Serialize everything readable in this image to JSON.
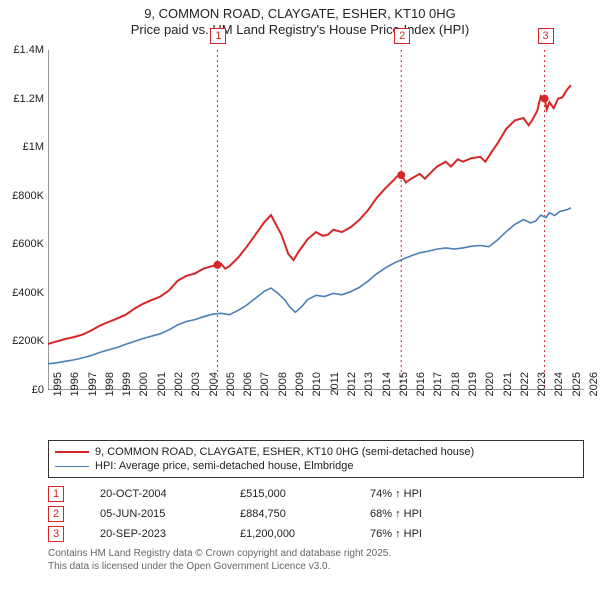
{
  "chart": {
    "type": "line",
    "title_line1": "9, COMMON ROAD, CLAYGATE, ESHER, KT10 0HG",
    "title_line2": "Price paid vs. HM Land Registry's House Price Index (HPI)",
    "title_fontsize": 13,
    "background_color": "#ffffff",
    "plot_border_color": "#333333",
    "grid_color": "#e5e5e5",
    "x_start_year": 1995,
    "x_end_year": 2026,
    "x_ticks": [
      1995,
      1996,
      1997,
      1998,
      1999,
      2000,
      2001,
      2002,
      2003,
      2004,
      2005,
      2006,
      2007,
      2008,
      2009,
      2010,
      2011,
      2012,
      2013,
      2014,
      2015,
      2016,
      2017,
      2018,
      2019,
      2020,
      2021,
      2022,
      2023,
      2024,
      2025,
      2026
    ],
    "ylim": [
      0,
      1400000
    ],
    "y_ticks": [
      0,
      200000,
      400000,
      600000,
      800000,
      1000000,
      1200000,
      1400000
    ],
    "y_tick_labels": [
      "£0",
      "£200K",
      "£400K",
      "£600K",
      "£800K",
      "£1M",
      "£1.2M",
      "£1.4M"
    ],
    "series": [
      {
        "key": "subject",
        "label": "9, COMMON ROAD, CLAYGATE, ESHER, KT10 0HG (semi-detached house)",
        "color": "#d62728",
        "line_width": 2,
        "data": [
          [
            1995.0,
            190000
          ],
          [
            1995.5,
            200000
          ],
          [
            1996.0,
            210000
          ],
          [
            1996.5,
            218000
          ],
          [
            1997.0,
            228000
          ],
          [
            1997.5,
            245000
          ],
          [
            1998.0,
            265000
          ],
          [
            1998.5,
            280000
          ],
          [
            1999.0,
            295000
          ],
          [
            1999.5,
            310000
          ],
          [
            2000.0,
            335000
          ],
          [
            2000.5,
            355000
          ],
          [
            2001.0,
            370000
          ],
          [
            2001.5,
            385000
          ],
          [
            2002.0,
            410000
          ],
          [
            2002.5,
            450000
          ],
          [
            2003.0,
            470000
          ],
          [
            2003.5,
            480000
          ],
          [
            2004.0,
            500000
          ],
          [
            2004.5,
            510000
          ],
          [
            2004.8,
            515000
          ],
          [
            2005.0,
            520000
          ],
          [
            2005.25,
            500000
          ],
          [
            2005.5,
            510000
          ],
          [
            2006.0,
            545000
          ],
          [
            2006.5,
            590000
          ],
          [
            2007.0,
            640000
          ],
          [
            2007.5,
            690000
          ],
          [
            2007.9,
            720000
          ],
          [
            2008.2,
            680000
          ],
          [
            2008.5,
            640000
          ],
          [
            2008.9,
            560000
          ],
          [
            2009.2,
            535000
          ],
          [
            2009.5,
            570000
          ],
          [
            2010.0,
            620000
          ],
          [
            2010.5,
            650000
          ],
          [
            2010.9,
            635000
          ],
          [
            2011.2,
            640000
          ],
          [
            2011.5,
            660000
          ],
          [
            2012.0,
            650000
          ],
          [
            2012.5,
            670000
          ],
          [
            2013.0,
            700000
          ],
          [
            2013.5,
            740000
          ],
          [
            2014.0,
            790000
          ],
          [
            2014.5,
            830000
          ],
          [
            2015.0,
            865000
          ],
          [
            2015.2,
            880000
          ],
          [
            2015.43,
            884750
          ],
          [
            2015.7,
            855000
          ],
          [
            2016.0,
            870000
          ],
          [
            2016.5,
            890000
          ],
          [
            2016.8,
            870000
          ],
          [
            2017.0,
            885000
          ],
          [
            2017.5,
            920000
          ],
          [
            2018.0,
            940000
          ],
          [
            2018.3,
            920000
          ],
          [
            2018.7,
            950000
          ],
          [
            2019.0,
            940000
          ],
          [
            2019.5,
            955000
          ],
          [
            2020.0,
            960000
          ],
          [
            2020.3,
            940000
          ],
          [
            2020.7,
            985000
          ],
          [
            2021.0,
            1015000
          ],
          [
            2021.5,
            1075000
          ],
          [
            2022.0,
            1110000
          ],
          [
            2022.5,
            1120000
          ],
          [
            2022.8,
            1090000
          ],
          [
            2023.0,
            1110000
          ],
          [
            2023.3,
            1150000
          ],
          [
            2023.5,
            1210000
          ],
          [
            2023.72,
            1200000
          ],
          [
            2023.85,
            1155000
          ],
          [
            2024.0,
            1185000
          ],
          [
            2024.25,
            1160000
          ],
          [
            2024.5,
            1200000
          ],
          [
            2024.75,
            1205000
          ],
          [
            2025.0,
            1235000
          ],
          [
            2025.25,
            1255000
          ]
        ]
      },
      {
        "key": "hpi",
        "label": "HPI: Average price, semi-detached house, Elmbridge",
        "color": "#4a7fb5",
        "line_width": 1.6,
        "data": [
          [
            1995.0,
            108000
          ],
          [
            1995.5,
            112000
          ],
          [
            1996.0,
            118000
          ],
          [
            1996.5,
            124000
          ],
          [
            1997.0,
            132000
          ],
          [
            1997.5,
            142000
          ],
          [
            1998.0,
            155000
          ],
          [
            1998.5,
            165000
          ],
          [
            1999.0,
            175000
          ],
          [
            1999.5,
            188000
          ],
          [
            2000.0,
            200000
          ],
          [
            2000.5,
            212000
          ],
          [
            2001.0,
            222000
          ],
          [
            2001.5,
            232000
          ],
          [
            2002.0,
            248000
          ],
          [
            2002.5,
            268000
          ],
          [
            2003.0,
            282000
          ],
          [
            2003.5,
            290000
          ],
          [
            2004.0,
            302000
          ],
          [
            2004.5,
            312000
          ],
          [
            2005.0,
            316000
          ],
          [
            2005.5,
            310000
          ],
          [
            2006.0,
            328000
          ],
          [
            2006.5,
            350000
          ],
          [
            2007.0,
            378000
          ],
          [
            2007.5,
            406000
          ],
          [
            2007.9,
            420000
          ],
          [
            2008.3,
            398000
          ],
          [
            2008.7,
            370000
          ],
          [
            2009.0,
            340000
          ],
          [
            2009.3,
            320000
          ],
          [
            2009.7,
            345000
          ],
          [
            2010.0,
            372000
          ],
          [
            2010.5,
            390000
          ],
          [
            2011.0,
            385000
          ],
          [
            2011.5,
            398000
          ],
          [
            2012.0,
            392000
          ],
          [
            2012.5,
            405000
          ],
          [
            2013.0,
            422000
          ],
          [
            2013.5,
            448000
          ],
          [
            2014.0,
            478000
          ],
          [
            2014.5,
            502000
          ],
          [
            2015.0,
            522000
          ],
          [
            2015.5,
            538000
          ],
          [
            2016.0,
            552000
          ],
          [
            2016.5,
            565000
          ],
          [
            2017.0,
            572000
          ],
          [
            2017.5,
            580000
          ],
          [
            2018.0,
            585000
          ],
          [
            2018.5,
            580000
          ],
          [
            2019.0,
            585000
          ],
          [
            2019.5,
            592000
          ],
          [
            2020.0,
            595000
          ],
          [
            2020.5,
            590000
          ],
          [
            2021.0,
            618000
          ],
          [
            2021.5,
            652000
          ],
          [
            2022.0,
            682000
          ],
          [
            2022.5,
            702000
          ],
          [
            2022.9,
            688000
          ],
          [
            2023.2,
            695000
          ],
          [
            2023.5,
            720000
          ],
          [
            2023.8,
            710000
          ],
          [
            2024.0,
            730000
          ],
          [
            2024.3,
            718000
          ],
          [
            2024.6,
            735000
          ],
          [
            2025.0,
            742000
          ],
          [
            2025.25,
            750000
          ]
        ]
      }
    ],
    "markers": [
      {
        "n": "1",
        "x": 2004.8,
        "y": 515000
      },
      {
        "n": "2",
        "x": 2015.43,
        "y": 884750
      },
      {
        "n": "3",
        "x": 2023.72,
        "y": 1200000
      }
    ],
    "marker_line_color": "#d62728",
    "marker_box_border": "#d62728"
  },
  "legend": {
    "items": [
      {
        "color": "#d62728",
        "width": 2,
        "label": "9, COMMON ROAD, CLAYGATE, ESHER, KT10 0HG (semi-detached house)"
      },
      {
        "color": "#4a7fb5",
        "width": 1.6,
        "label": "HPI: Average price, semi-detached house, Elmbridge"
      }
    ]
  },
  "sales": [
    {
      "n": "1",
      "date": "20-OCT-2004",
      "price": "£515,000",
      "delta": "74% ↑ HPI"
    },
    {
      "n": "2",
      "date": "05-JUN-2015",
      "price": "£884,750",
      "delta": "68% ↑ HPI"
    },
    {
      "n": "3",
      "date": "20-SEP-2023",
      "price": "£1,200,000",
      "delta": "76% ↑ HPI"
    }
  ],
  "footer": {
    "line1": "Contains HM Land Registry data © Crown copyright and database right 2025.",
    "line2": "This data is licensed under the Open Government Licence v3.0."
  }
}
